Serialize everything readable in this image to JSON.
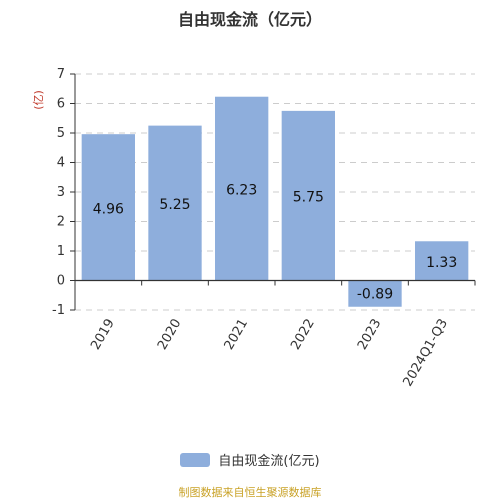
{
  "chart_data": {
    "type": "bar",
    "title": "自由现金流（亿元）",
    "ylabel": "亿",
    "categories": [
      "2019",
      "2020",
      "2021",
      "2022",
      "2023",
      "2024Q1-Q3"
    ],
    "series": [
      {
        "name": "自由现金流(亿元)",
        "values": [
          4.96,
          5.25,
          6.23,
          5.75,
          -0.89,
          1.33
        ]
      }
    ],
    "data_labels": [
      "4.96",
      "5.25",
      "6.23",
      "5.75",
      "-0.89",
      "1.33"
    ],
    "yticks": [
      "-1",
      "0",
      "1",
      "2",
      "3",
      "4",
      "5",
      "6",
      "7"
    ],
    "ylim": [
      -1,
      7
    ],
    "grid": true,
    "legend": "bottom"
  },
  "footer": {
    "note": "制图数据来自恒生聚源数据库"
  },
  "colors": {
    "bar": "#8eaedc",
    "axis": "#333333",
    "grid": "#cccccc",
    "ylabel": "#c0392b",
    "note": "#c9a227"
  }
}
